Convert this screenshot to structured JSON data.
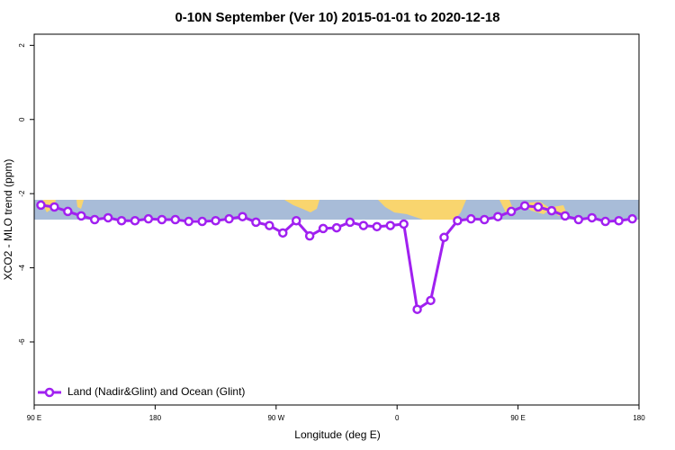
{
  "chart_data": {
    "type": "line",
    "title": "0-10N September (Ver 10)   2015-01-01 to 2020-12-18",
    "x_label": "Longitude (deg E)",
    "y_label": "XCO2 - MLO trend (ppm)",
    "x": [
      95,
      105,
      115,
      125,
      135,
      145,
      155,
      165,
      175,
      185,
      195,
      205,
      215,
      225,
      235,
      245,
      255,
      265,
      275,
      285,
      295,
      305,
      315,
      325,
      335,
      345,
      355,
      365,
      375,
      385,
      395,
      405,
      415,
      425,
      435,
      445,
      455,
      465,
      475,
      485,
      495,
      505,
      515,
      525,
      535
    ],
    "series": [
      {
        "name": "Land (Nadir&Glint) and Ocean (Glint)",
        "color": "#a020f0",
        "values": [
          -2.31,
          -2.36,
          -2.48,
          -2.6,
          -2.7,
          -2.65,
          -2.73,
          -2.73,
          -2.68,
          -2.7,
          -2.7,
          -2.75,
          -2.75,
          -2.73,
          -2.68,
          -2.62,
          -2.77,
          -2.86,
          -3.06,
          -2.73,
          -3.14,
          -2.94,
          -2.92,
          -2.77,
          -2.86,
          -2.89,
          -2.86,
          -2.82,
          -5.12,
          -4.88,
          -3.18,
          -2.73,
          -2.68,
          -2.7,
          -2.62,
          -2.48,
          -2.33,
          -2.36,
          -2.46,
          -2.6,
          -2.7,
          -2.65,
          -2.75,
          -2.73,
          -2.68
        ]
      }
    ],
    "xlim": [
      90,
      540
    ],
    "xticks": [
      {
        "value": 90,
        "label": "90 E"
      },
      180,
      {
        "value": 270,
        "label": "90 W"
      },
      {
        "value": 360,
        "label": "0"
      },
      {
        "value": 450,
        "label": "90 E"
      },
      {
        "value": 540,
        "label": "180"
      }
    ],
    "ylim": [
      -7.7,
      2.3
    ],
    "yticks": [
      2,
      0,
      -2,
      -4,
      -6
    ],
    "legend": "bottom-left"
  }
}
